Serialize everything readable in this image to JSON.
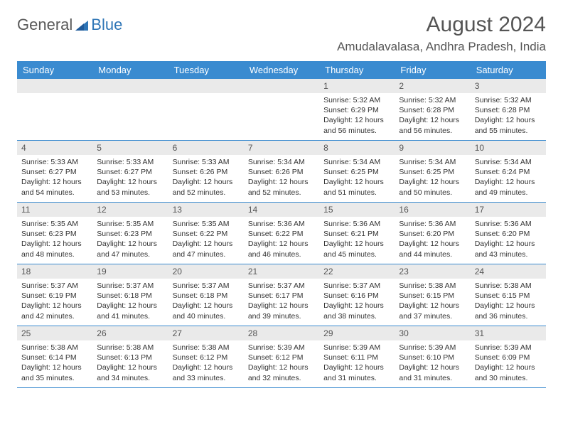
{
  "brand": {
    "word1": "General",
    "word2": "Blue"
  },
  "title": "August 2024",
  "location": "Amudalavalasa, Andhra Pradesh, India",
  "colors": {
    "header_bg": "#3a8bd0",
    "header_fg": "#ffffff",
    "daynum_bg": "#eaeaea",
    "row_border": "#3a8bd0",
    "brand_gray": "#595959",
    "brand_blue": "#2e75b6",
    "text": "#333333"
  },
  "day_names": [
    "Sunday",
    "Monday",
    "Tuesday",
    "Wednesday",
    "Thursday",
    "Friday",
    "Saturday"
  ],
  "weeks": [
    [
      {
        "n": "",
        "sr": "",
        "ss": "",
        "dl": ""
      },
      {
        "n": "",
        "sr": "",
        "ss": "",
        "dl": ""
      },
      {
        "n": "",
        "sr": "",
        "ss": "",
        "dl": ""
      },
      {
        "n": "",
        "sr": "",
        "ss": "",
        "dl": ""
      },
      {
        "n": "1",
        "sr": "Sunrise: 5:32 AM",
        "ss": "Sunset: 6:29 PM",
        "dl": "Daylight: 12 hours and 56 minutes."
      },
      {
        "n": "2",
        "sr": "Sunrise: 5:32 AM",
        "ss": "Sunset: 6:28 PM",
        "dl": "Daylight: 12 hours and 56 minutes."
      },
      {
        "n": "3",
        "sr": "Sunrise: 5:32 AM",
        "ss": "Sunset: 6:28 PM",
        "dl": "Daylight: 12 hours and 55 minutes."
      }
    ],
    [
      {
        "n": "4",
        "sr": "Sunrise: 5:33 AM",
        "ss": "Sunset: 6:27 PM",
        "dl": "Daylight: 12 hours and 54 minutes."
      },
      {
        "n": "5",
        "sr": "Sunrise: 5:33 AM",
        "ss": "Sunset: 6:27 PM",
        "dl": "Daylight: 12 hours and 53 minutes."
      },
      {
        "n": "6",
        "sr": "Sunrise: 5:33 AM",
        "ss": "Sunset: 6:26 PM",
        "dl": "Daylight: 12 hours and 52 minutes."
      },
      {
        "n": "7",
        "sr": "Sunrise: 5:34 AM",
        "ss": "Sunset: 6:26 PM",
        "dl": "Daylight: 12 hours and 52 minutes."
      },
      {
        "n": "8",
        "sr": "Sunrise: 5:34 AM",
        "ss": "Sunset: 6:25 PM",
        "dl": "Daylight: 12 hours and 51 minutes."
      },
      {
        "n": "9",
        "sr": "Sunrise: 5:34 AM",
        "ss": "Sunset: 6:25 PM",
        "dl": "Daylight: 12 hours and 50 minutes."
      },
      {
        "n": "10",
        "sr": "Sunrise: 5:34 AM",
        "ss": "Sunset: 6:24 PM",
        "dl": "Daylight: 12 hours and 49 minutes."
      }
    ],
    [
      {
        "n": "11",
        "sr": "Sunrise: 5:35 AM",
        "ss": "Sunset: 6:23 PM",
        "dl": "Daylight: 12 hours and 48 minutes."
      },
      {
        "n": "12",
        "sr": "Sunrise: 5:35 AM",
        "ss": "Sunset: 6:23 PM",
        "dl": "Daylight: 12 hours and 47 minutes."
      },
      {
        "n": "13",
        "sr": "Sunrise: 5:35 AM",
        "ss": "Sunset: 6:22 PM",
        "dl": "Daylight: 12 hours and 47 minutes."
      },
      {
        "n": "14",
        "sr": "Sunrise: 5:36 AM",
        "ss": "Sunset: 6:22 PM",
        "dl": "Daylight: 12 hours and 46 minutes."
      },
      {
        "n": "15",
        "sr": "Sunrise: 5:36 AM",
        "ss": "Sunset: 6:21 PM",
        "dl": "Daylight: 12 hours and 45 minutes."
      },
      {
        "n": "16",
        "sr": "Sunrise: 5:36 AM",
        "ss": "Sunset: 6:20 PM",
        "dl": "Daylight: 12 hours and 44 minutes."
      },
      {
        "n": "17",
        "sr": "Sunrise: 5:36 AM",
        "ss": "Sunset: 6:20 PM",
        "dl": "Daylight: 12 hours and 43 minutes."
      }
    ],
    [
      {
        "n": "18",
        "sr": "Sunrise: 5:37 AM",
        "ss": "Sunset: 6:19 PM",
        "dl": "Daylight: 12 hours and 42 minutes."
      },
      {
        "n": "19",
        "sr": "Sunrise: 5:37 AM",
        "ss": "Sunset: 6:18 PM",
        "dl": "Daylight: 12 hours and 41 minutes."
      },
      {
        "n": "20",
        "sr": "Sunrise: 5:37 AM",
        "ss": "Sunset: 6:18 PM",
        "dl": "Daylight: 12 hours and 40 minutes."
      },
      {
        "n": "21",
        "sr": "Sunrise: 5:37 AM",
        "ss": "Sunset: 6:17 PM",
        "dl": "Daylight: 12 hours and 39 minutes."
      },
      {
        "n": "22",
        "sr": "Sunrise: 5:37 AM",
        "ss": "Sunset: 6:16 PM",
        "dl": "Daylight: 12 hours and 38 minutes."
      },
      {
        "n": "23",
        "sr": "Sunrise: 5:38 AM",
        "ss": "Sunset: 6:15 PM",
        "dl": "Daylight: 12 hours and 37 minutes."
      },
      {
        "n": "24",
        "sr": "Sunrise: 5:38 AM",
        "ss": "Sunset: 6:15 PM",
        "dl": "Daylight: 12 hours and 36 minutes."
      }
    ],
    [
      {
        "n": "25",
        "sr": "Sunrise: 5:38 AM",
        "ss": "Sunset: 6:14 PM",
        "dl": "Daylight: 12 hours and 35 minutes."
      },
      {
        "n": "26",
        "sr": "Sunrise: 5:38 AM",
        "ss": "Sunset: 6:13 PM",
        "dl": "Daylight: 12 hours and 34 minutes."
      },
      {
        "n": "27",
        "sr": "Sunrise: 5:38 AM",
        "ss": "Sunset: 6:12 PM",
        "dl": "Daylight: 12 hours and 33 minutes."
      },
      {
        "n": "28",
        "sr": "Sunrise: 5:39 AM",
        "ss": "Sunset: 6:12 PM",
        "dl": "Daylight: 12 hours and 32 minutes."
      },
      {
        "n": "29",
        "sr": "Sunrise: 5:39 AM",
        "ss": "Sunset: 6:11 PM",
        "dl": "Daylight: 12 hours and 31 minutes."
      },
      {
        "n": "30",
        "sr": "Sunrise: 5:39 AM",
        "ss": "Sunset: 6:10 PM",
        "dl": "Daylight: 12 hours and 31 minutes."
      },
      {
        "n": "31",
        "sr": "Sunrise: 5:39 AM",
        "ss": "Sunset: 6:09 PM",
        "dl": "Daylight: 12 hours and 30 minutes."
      }
    ]
  ]
}
